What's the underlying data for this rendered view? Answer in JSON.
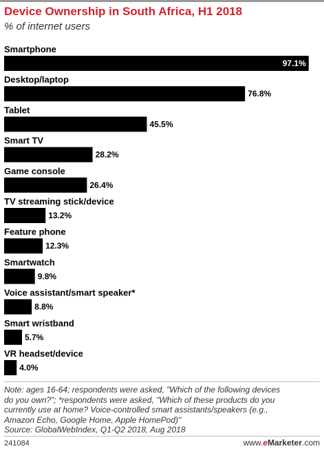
{
  "chart_data": {
    "type": "bar",
    "orientation": "horizontal",
    "title": "Device Ownership in South Africa, H1 2018",
    "subtitle": "% of internet users",
    "categories": [
      "Smartphone",
      "Desktop/laptop",
      "Tablet",
      "Smart TV",
      "Game console",
      "TV streaming stick/device",
      "Feature phone",
      "Smartwatch",
      "Voice assistant/smart speaker*",
      "Smart wristband",
      "VR headset/device"
    ],
    "values": [
      97.1,
      76.8,
      45.5,
      28.2,
      26.4,
      13.2,
      12.3,
      9.8,
      8.8,
      5.7,
      4.0
    ],
    "value_labels": [
      "97.1%",
      "76.8%",
      "45.5%",
      "28.2%",
      "26.4%",
      "13.2%",
      "12.3%",
      "9.8%",
      "8.8%",
      "5.7%",
      "4.0%"
    ],
    "xlim": [
      0,
      100
    ],
    "grid": false,
    "legend": "none",
    "bar_color": "#000000"
  },
  "notes": [
    "Note: ages 16-64; respondents were asked, \"Which of the following devices",
    "do you own?\"; *respondents were asked, \"Which of these products do you",
    "currently use at home? Voice-controlled smart assistants/speakers (e.g.,",
    "Amazon Echo, Google Home, Apple HomePod)\""
  ],
  "source": "Source: GlobalWebIndex, Q1-Q2 2018, Aug 2018",
  "footer": {
    "chart_id": "241084",
    "brand_prefix": "www.",
    "brand_e": "e",
    "brand_name": "Marketer",
    "brand_suffix": ".com"
  },
  "colors": {
    "title": "#d3212b",
    "bar": "#000000"
  }
}
